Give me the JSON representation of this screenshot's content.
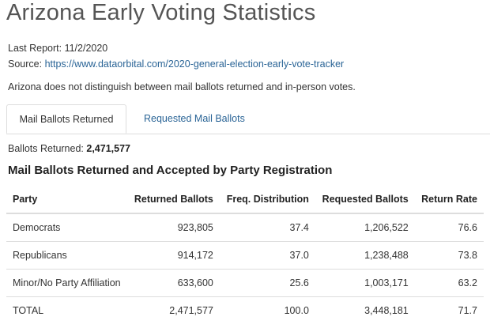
{
  "page": {
    "title": "Arizona Early Voting Statistics",
    "last_report_label": "Last Report:",
    "last_report_date": "11/2/2020",
    "source_label": "Source:",
    "source_link": "https://www.dataorbital.com/2020-general-election-early-vote-tracker",
    "note": "Arizona does not distinguish between mail ballots returned and in-person votes."
  },
  "tabs": [
    {
      "label": "Mail Ballots Returned",
      "active": true
    },
    {
      "label": "Requested Mail Ballots",
      "active": false
    }
  ],
  "summary": {
    "label": "Ballots Returned:",
    "value": "2,471,577"
  },
  "section_title": "Mail Ballots Returned and Accepted by Party Registration",
  "table": {
    "headers": [
      "Party",
      "Returned Ballots",
      "Freq. Distribution",
      "Requested Ballots",
      "Return Rate"
    ],
    "rows": [
      [
        "Democrats",
        "923,805",
        "37.4",
        "1,206,522",
        "76.6"
      ],
      [
        "Republicans",
        "914,172",
        "37.0",
        "1,238,488",
        "73.8"
      ],
      [
        "Minor/No Party Affiliation",
        "633,600",
        "25.6",
        "1,003,171",
        "63.2"
      ],
      [
        "TOTAL",
        "2,471,577",
        "100.0",
        "3,448,181",
        "71.7"
      ]
    ]
  }
}
